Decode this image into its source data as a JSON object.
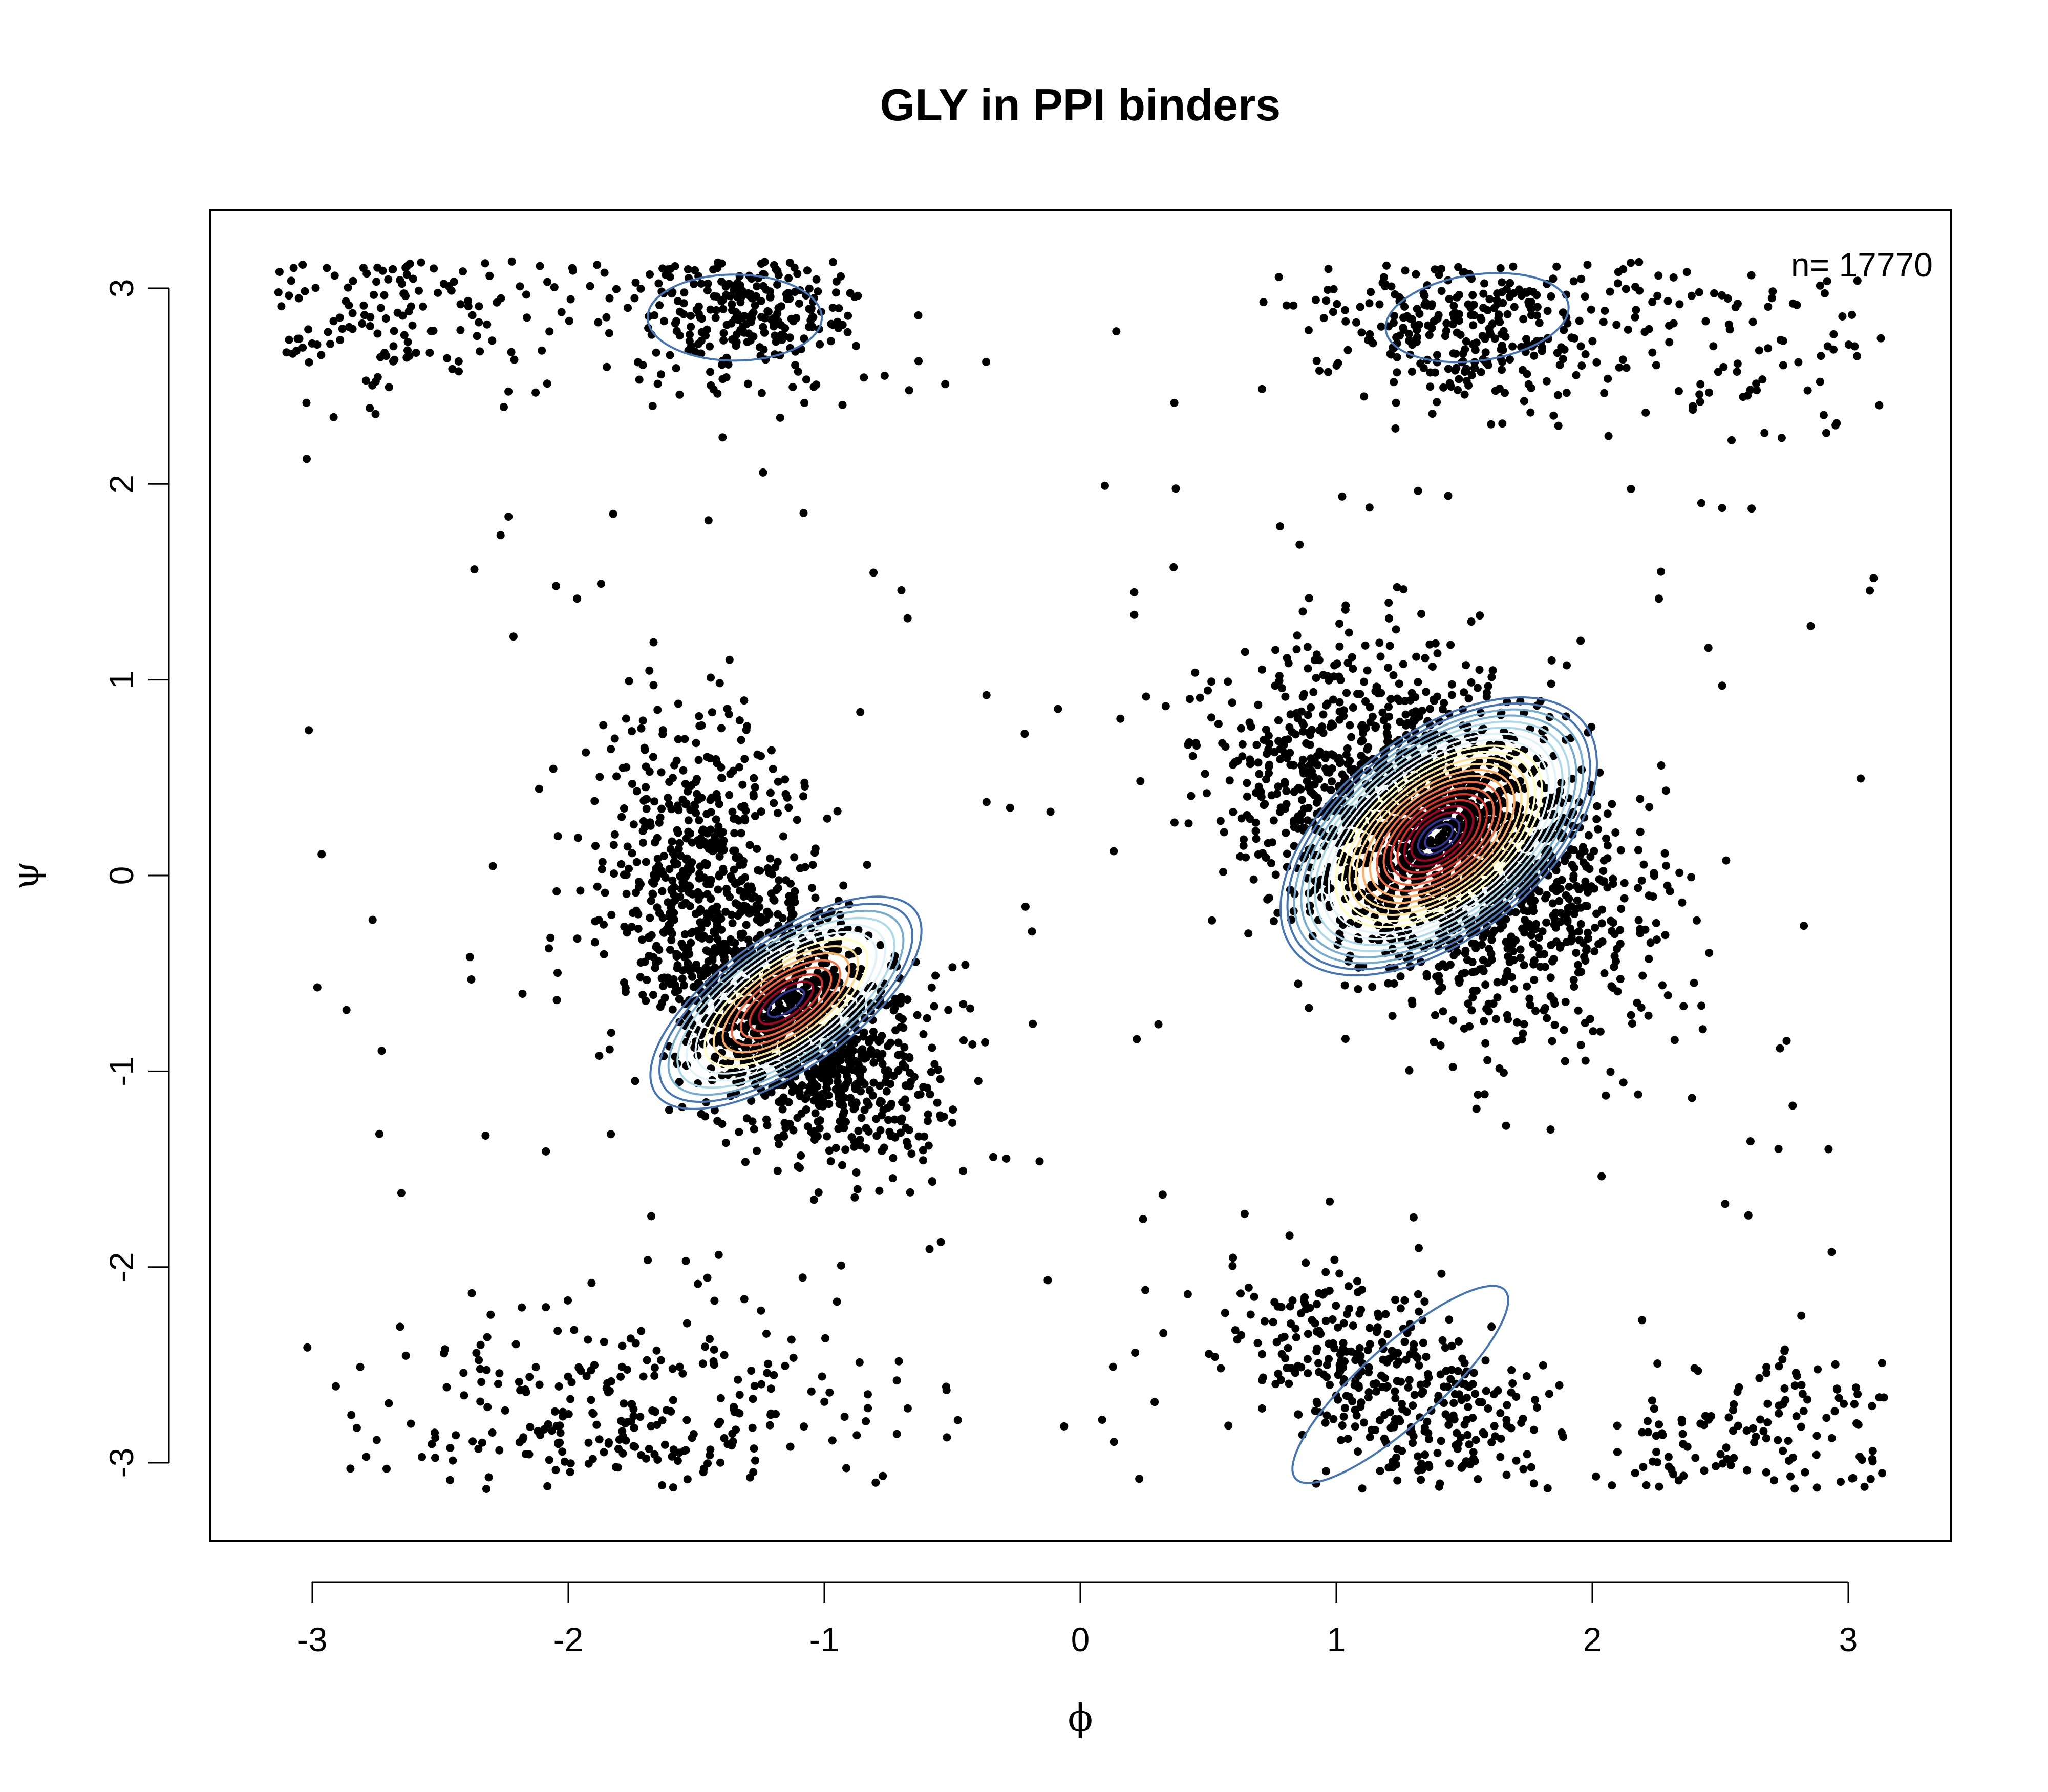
{
  "chart_data": {
    "type": "scatter",
    "title": "GLY  in PPI binders",
    "xlabel": "ϕ",
    "ylabel": "ψ",
    "xlim": [
      -3.4,
      3.4
    ],
    "ylim": [
      -3.4,
      3.4
    ],
    "x_ticks": [
      {
        "value": -3,
        "label": "-3"
      },
      {
        "value": -2,
        "label": "-2"
      },
      {
        "value": -1,
        "label": "-1"
      },
      {
        "value": 0,
        "label": "0"
      },
      {
        "value": 1,
        "label": "1"
      },
      {
        "value": 2,
        "label": "2"
      },
      {
        "value": 3,
        "label": "3"
      }
    ],
    "y_ticks": [
      {
        "value": -3,
        "label": "-3"
      },
      {
        "value": -2,
        "label": "-2"
      },
      {
        "value": -1,
        "label": "-1"
      },
      {
        "value": 0,
        "label": "0"
      },
      {
        "value": 1,
        "label": "1"
      },
      {
        "value": 2,
        "label": "2"
      },
      {
        "value": 3,
        "label": "3"
      }
    ],
    "annotation": "n= 17770",
    "grid": false,
    "point_color": "#000000",
    "clusters": [
      {
        "cx": 1.4,
        "cy": 0.2,
        "sx": 0.38,
        "sy": 0.45,
        "rho": -0.45,
        "weight": 0.3
      },
      {
        "cx": -1.15,
        "cy": -0.7,
        "sx": 0.28,
        "sy": 0.38,
        "rho": -0.5,
        "weight": 0.2
      },
      {
        "cx": -1.5,
        "cy": 0.2,
        "sx": 0.2,
        "sy": 0.35,
        "rho": 0.0,
        "weight": 0.05
      },
      {
        "cx": -1.3,
        "cy": 2.9,
        "sx": 0.25,
        "sy": 0.2,
        "rho": 0.0,
        "weight": 0.05
      },
      {
        "cx": 1.5,
        "cy": 2.85,
        "sx": 0.28,
        "sy": 0.2,
        "rho": 0.0,
        "weight": 0.05
      },
      {
        "cx": 1.2,
        "cy": -2.6,
        "sx": 0.3,
        "sy": 0.3,
        "rho": -0.6,
        "weight": 0.06
      },
      {
        "cx": -1.7,
        "cy": -2.75,
        "sx": 0.5,
        "sy": 0.25,
        "rho": 0.0,
        "weight": 0.04
      },
      {
        "cx": -2.7,
        "cy": 2.9,
        "sx": 0.4,
        "sy": 0.25,
        "rho": 0.0,
        "weight": 0.03
      },
      {
        "cx": 2.7,
        "cy": -2.9,
        "sx": 0.4,
        "sy": 0.25,
        "rho": 0.0,
        "weight": 0.03
      },
      {
        "cx": 2.6,
        "cy": 2.8,
        "sx": 0.5,
        "sy": 0.3,
        "rho": 0.0,
        "weight": 0.02
      }
    ],
    "contours": [
      {
        "cx": 1.4,
        "cy": 0.2,
        "rx": 0.72,
        "ry": 0.52,
        "angle": -38,
        "levels": 22
      },
      {
        "cx": -1.15,
        "cy": -0.65,
        "rx": 0.62,
        "ry": 0.34,
        "angle": -35,
        "levels": 14
      },
      {
        "cx": -1.35,
        "cy": 2.85,
        "rx": 0.34,
        "ry": 0.22,
        "angle": 0,
        "levels": 1
      },
      {
        "cx": 1.55,
        "cy": 2.85,
        "rx": 0.36,
        "ry": 0.22,
        "angle": -8,
        "levels": 1
      },
      {
        "cx": 1.25,
        "cy": -2.6,
        "rx": 0.55,
        "ry": 0.2,
        "angle": -42,
        "levels": 1
      }
    ],
    "contour_palette": [
      "#4575b4",
      "#74add1",
      "#abd9e9",
      "#e0f3f8",
      "#ffffbf",
      "#fee090",
      "#fdae61",
      "#f46d43",
      "#d73027",
      "#a50026",
      "#313695"
    ]
  }
}
